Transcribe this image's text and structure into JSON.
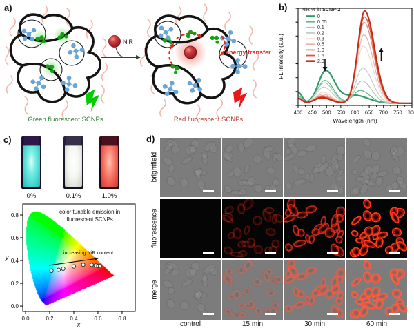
{
  "figure": {
    "panel_a": {
      "label": "a)",
      "nir_sphere_label": "NiR",
      "energy_transfer_label": "energy transfer",
      "left_caption": "Green fluorescent SCNPs",
      "right_caption": "Red fluorescent SCNPs",
      "colors": {
        "green_fluorophore": "#12a312",
        "crosslinker_blue": "#6aa5d8",
        "polymer_chain": "#141414",
        "pendant_chain": "#f4b6aa",
        "nir_sphere": "#b01e2c",
        "green_caption": "#2e7d32",
        "red_caption": "#b03a2e",
        "energy_transfer": "#e8251a",
        "green_bolt": "#00cc00",
        "red_bolt": "#e81818"
      }
    },
    "panel_b": {
      "label": "b)"
    },
    "panel_c": {
      "label": "c)",
      "cuvettes": [
        {
          "label": "0%",
          "glow": "#56e6da"
        },
        {
          "label": "0.1%",
          "glow": "#f0f4ea"
        },
        {
          "label": "1.0%",
          "glow": "#ea5a50"
        }
      ]
    },
    "panel_d": {
      "label": "d)",
      "row_labels": [
        "brightfield",
        "fluorescence",
        "merge"
      ],
      "col_labels": [
        "control",
        "15 min",
        "30 min",
        "60 min"
      ],
      "red_intensity": [
        0,
        0.22,
        0.6,
        0.95
      ],
      "cells_per_tile": [
        22,
        24,
        26,
        26
      ],
      "scale_bar": "white scale bar, bottom-right of each micrograph"
    }
  },
  "chart_data": [
    {
      "id": "fl-spectra",
      "type": "line",
      "xlabel": "Wavelength (nm)",
      "ylabel": "FL Intensity (a.u.)",
      "xlim": [
        400,
        800
      ],
      "xticks": [
        400,
        450,
        500,
        550,
        600,
        650,
        700,
        750,
        800
      ],
      "ylim": [
        0,
        1
      ],
      "grid": false,
      "legend_title_prefix": "NiR % in ",
      "legend_title_bold": "SCNP-2",
      "legend_position": "top-left",
      "annotations": [
        {
          "symbol": "down-arrow",
          "meaning": "green emission near 500 nm decreases",
          "x_nm": 500
        },
        {
          "symbol": "up-arrow",
          "meaning": "red emission near 650 nm increases",
          "x_nm": 690
        }
      ],
      "note": "peaks given as [wavelength_nm, relative_intensity]",
      "series": [
        {
          "name": "0",
          "color": "#2f9a66",
          "lw": 2.2,
          "green_peak": [
            497,
            0.34
          ],
          "red_peak": [
            597,
            0.085
          ],
          "red_sigma": [
            42,
            48
          ]
        },
        {
          "name": "0.05",
          "color": "#5eb386",
          "lw": 1.2,
          "green_peak": [
            494,
            0.24
          ],
          "red_peak": [
            618,
            0.135
          ]
        },
        {
          "name": "0.1",
          "color": "#9fceb5",
          "lw": 1.2,
          "green_peak": [
            492,
            0.215
          ],
          "red_peak": [
            624,
            0.235
          ]
        },
        {
          "name": "0.2",
          "color": "#c7ccc7",
          "lw": 1.2,
          "green_peak": [
            490,
            0.17
          ],
          "red_peak": [
            627,
            0.37
          ]
        },
        {
          "name": "0.3",
          "color": "#efd9d4",
          "lw": 1.2,
          "green_peak": [
            488,
            0.115
          ],
          "red_peak": [
            629,
            0.6
          ]
        },
        {
          "name": "0.5",
          "color": "#e6b3a6",
          "lw": 1.2,
          "green_peak": [
            487,
            0.095
          ],
          "red_peak": [
            631,
            0.72
          ]
        },
        {
          "name": "1.0",
          "color": "#e0826e",
          "lw": 1.2,
          "green_peak": [
            486,
            0.08
          ],
          "red_peak": [
            632,
            0.85
          ]
        },
        {
          "name": "1.5",
          "color": "#d75740",
          "lw": 1.4,
          "green_peak": [
            485,
            0.068
          ],
          "red_peak": [
            633,
            0.91
          ]
        },
        {
          "name": "2.0",
          "color": "#cb2b15",
          "lw": 2.2,
          "green_peak": [
            484,
            0.058
          ],
          "red_peak": [
            634,
            0.97
          ]
        }
      ]
    },
    {
      "id": "cie-1931",
      "type": "scatter",
      "title_lines": [
        "color tunable emission in",
        "fluorescent SCNPs"
      ],
      "xlabel": "x",
      "ylabel": "y",
      "xlim": [
        0,
        0.8
      ],
      "ylim": [
        0,
        0.8
      ],
      "xticks": [
        0,
        0.2,
        0.4,
        0.6,
        0.8
      ],
      "yticks": [
        0,
        0.2,
        0.4,
        0.6,
        0.8
      ],
      "annotation": "increasing NiR content",
      "background": "CIE 1931 chromaticity horseshoe",
      "points": [
        [
          0.215,
          0.31
        ],
        [
          0.275,
          0.318
        ],
        [
          0.312,
          0.328
        ],
        [
          0.4,
          0.348
        ],
        [
          0.478,
          0.363
        ],
        [
          0.548,
          0.362
        ],
        [
          0.582,
          0.356
        ],
        [
          0.603,
          0.352
        ],
        [
          0.618,
          0.35
        ]
      ]
    }
  ]
}
